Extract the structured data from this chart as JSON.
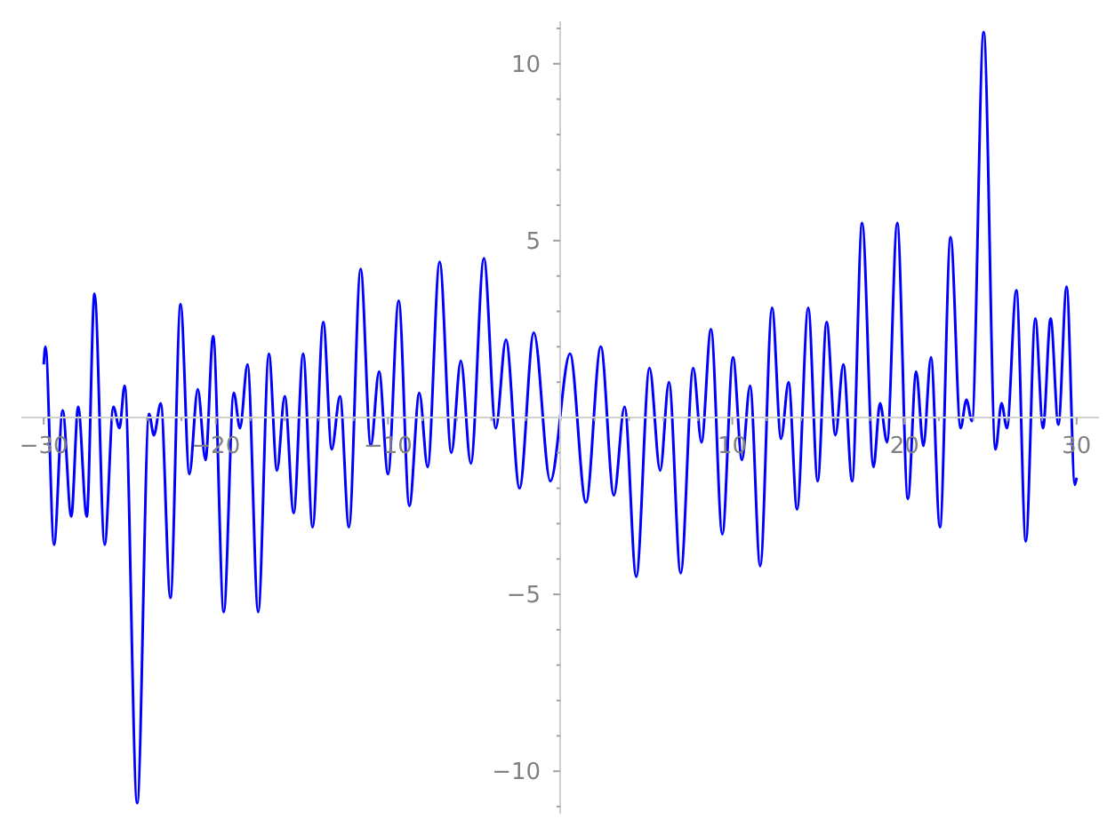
{
  "chart_data": {
    "type": "line",
    "x": [
      -30.0,
      -29.9,
      -29.4,
      -28.9,
      -28.4,
      -28.0,
      -27.5,
      -27.05,
      -26.46,
      -25.95,
      -25.6,
      -25.3,
      -24.57,
      -23.88,
      -23.6,
      -23.2,
      -22.64,
      -22.05,
      -21.54,
      -21.05,
      -20.6,
      -20.16,
      -19.54,
      -18.96,
      -18.6,
      -18.16,
      -17.54,
      -16.92,
      -16.45,
      -16.0,
      -15.48,
      -14.93,
      -14.38,
      -13.76,
      -13.27,
      -12.79,
      -12.27,
      -11.59,
      -11.0,
      -10.52,
      -10.0,
      -9.38,
      -8.76,
      -8.18,
      -7.7,
      -7.0,
      -6.32,
      -5.77,
      -5.19,
      -4.43,
      -3.74,
      -3.15,
      -2.36,
      -1.53,
      -0.57,
      0.57,
      1.5,
      2.36,
      3.12,
      3.74,
      4.42,
      5.19,
      5.81,
      6.32,
      7.0,
      7.73,
      8.21,
      8.76,
      9.42,
      10.04,
      10.56,
      11.03,
      11.62,
      12.31,
      12.83,
      13.27,
      13.76,
      14.41,
      14.96,
      15.48,
      15.99,
      16.45,
      16.96,
      17.54,
      18.2,
      18.58,
      18.99,
      19.58,
      20.2,
      20.68,
      21.1,
      21.54,
      22.06,
      22.68,
      23.26,
      23.6,
      23.92,
      24.6,
      25.29,
      25.64,
      25.95,
      26.5,
      27.05,
      27.6,
      28.05,
      28.49,
      28.94,
      29.42,
      29.9,
      30.0
    ],
    "values": [
      1.5,
      2.0,
      -3.6,
      0.2,
      -2.8,
      0.3,
      -2.8,
      3.5,
      -3.6,
      0.3,
      -0.3,
      0.9,
      -10.9,
      0.1,
      -0.5,
      0.4,
      -5.1,
      3.2,
      -1.6,
      0.8,
      -1.2,
      2.3,
      -5.5,
      0.7,
      -0.3,
      1.5,
      -5.5,
      1.8,
      -1.5,
      0.6,
      -2.7,
      1.8,
      -3.1,
      2.7,
      -0.9,
      0.6,
      -3.1,
      4.2,
      -0.8,
      1.3,
      -1.6,
      3.3,
      -2.5,
      0.7,
      -1.4,
      4.4,
      -1.0,
      1.6,
      -1.3,
      4.5,
      -0.3,
      2.2,
      -2.0,
      2.4,
      -1.8,
      1.8,
      -2.4,
      2.0,
      -2.2,
      0.3,
      -4.5,
      1.4,
      -1.5,
      1.0,
      -4.4,
      1.4,
      -0.7,
      2.5,
      -3.3,
      1.7,
      -1.2,
      0.9,
      -4.2,
      3.1,
      -0.6,
      1.0,
      -2.6,
      3.1,
      -1.8,
      2.7,
      -0.5,
      1.5,
      -1.8,
      5.5,
      -1.4,
      0.4,
      -0.7,
      5.5,
      -2.3,
      1.3,
      -0.8,
      1.7,
      -3.1,
      5.1,
      -0.3,
      0.5,
      -0.1,
      10.9,
      -0.9,
      0.4,
      -0.3,
      3.6,
      -3.5,
      2.8,
      -0.3,
      2.8,
      -0.2,
      3.7,
      -1.9,
      -1.7
    ],
    "color": "#0000ff",
    "marker": "none",
    "line_style": "solid",
    "xlim": [
      -31.3,
      31.3
    ],
    "ylim": [
      -11.2,
      11.2
    ],
    "xticks": [
      {
        "value": -30,
        "label": "−30"
      },
      {
        "value": -28,
        "label": null
      },
      {
        "value": -26,
        "label": null
      },
      {
        "value": -24,
        "label": null
      },
      {
        "value": -22,
        "label": null
      },
      {
        "value": -20,
        "label": "−20"
      },
      {
        "value": -18,
        "label": null
      },
      {
        "value": -16,
        "label": null
      },
      {
        "value": -14,
        "label": null
      },
      {
        "value": -12,
        "label": null
      },
      {
        "value": -10,
        "label": "−10"
      },
      {
        "value": -8,
        "label": null
      },
      {
        "value": -6,
        "label": null
      },
      {
        "value": -4,
        "label": null
      },
      {
        "value": -2,
        "label": null
      },
      {
        "value": 2,
        "label": null
      },
      {
        "value": 4,
        "label": null
      },
      {
        "value": 6,
        "label": null
      },
      {
        "value": 8,
        "label": null
      },
      10,
      {
        "value": 12,
        "label": null
      },
      {
        "value": 14,
        "label": null
      },
      {
        "value": 16,
        "label": null
      },
      {
        "value": 18,
        "label": null
      },
      20,
      {
        "value": 22,
        "label": null
      },
      {
        "value": 24,
        "label": null
      },
      {
        "value": 26,
        "label": null
      },
      {
        "value": 28,
        "label": null
      },
      30
    ],
    "yticks": [
      {
        "value": -11,
        "label": null
      },
      {
        "value": -10,
        "label": "−10"
      },
      {
        "value": -9,
        "label": null
      },
      {
        "value": -8,
        "label": null
      },
      {
        "value": -7,
        "label": null
      },
      {
        "value": -6,
        "label": null
      },
      {
        "value": -5,
        "label": "−5"
      },
      {
        "value": -4,
        "label": null
      },
      {
        "value": -3,
        "label": null
      },
      {
        "value": -2,
        "label": null
      },
      {
        "value": -1,
        "label": null
      },
      {
        "value": 1,
        "label": null
      },
      {
        "value": 2,
        "label": null
      },
      {
        "value": 3,
        "label": null
      },
      {
        "value": 4,
        "label": null
      },
      5,
      {
        "value": 6,
        "label": null
      },
      {
        "value": 7,
        "label": null
      },
      {
        "value": 8,
        "label": null
      },
      {
        "value": 9,
        "label": null
      },
      10,
      {
        "value": 11,
        "label": null
      }
    ]
  }
}
